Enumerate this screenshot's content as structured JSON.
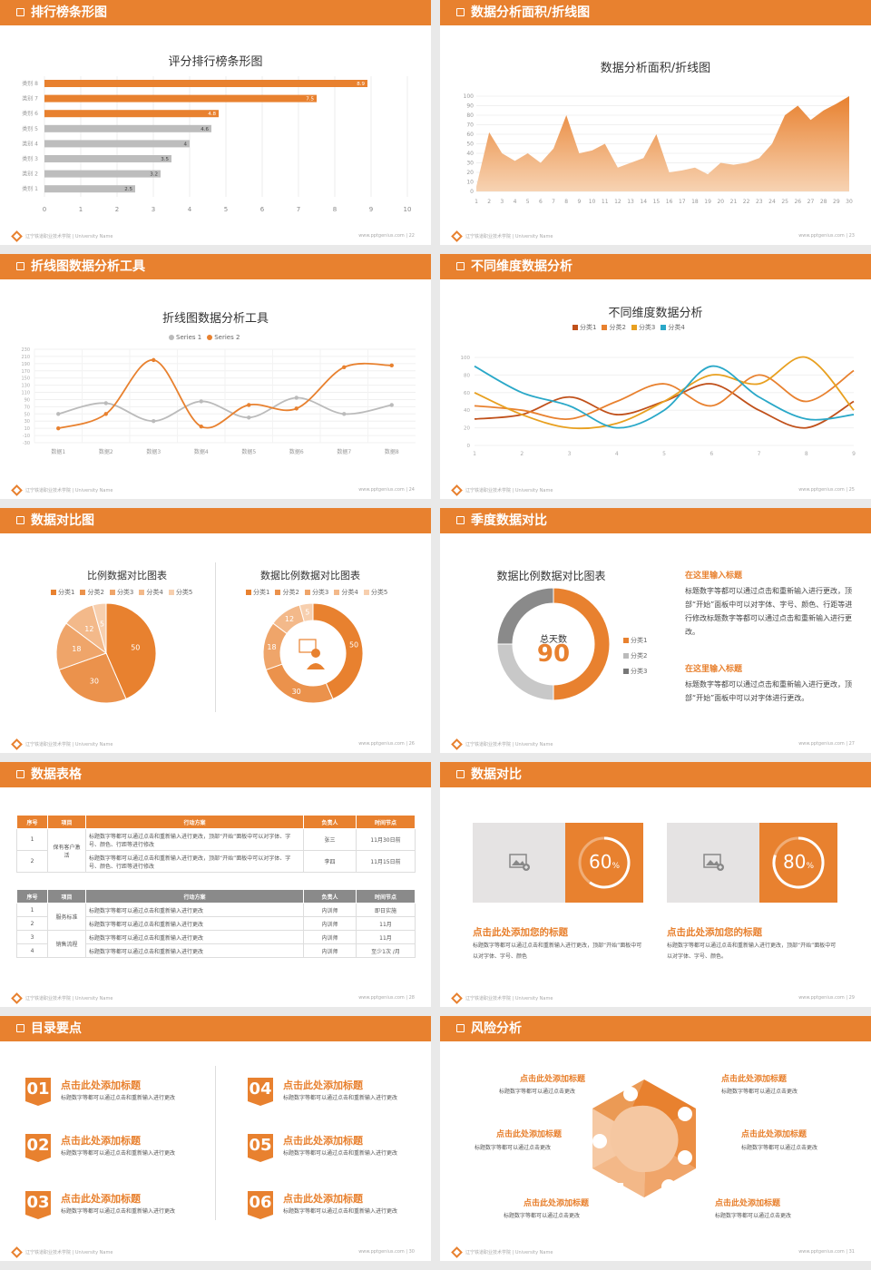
{
  "footer": {
    "left": "辽宁铁道职业技术学院 | University Name",
    "url": "www.pptgenius.com"
  },
  "slides": [
    {
      "title": "排行榜条形图",
      "page": "22"
    },
    {
      "title": "数据分析面积/折线图",
      "page": "23"
    },
    {
      "title": "折线图数据分析工具",
      "page": "24"
    },
    {
      "title": "不同维度数据分析",
      "page": "25"
    },
    {
      "title": "数据对比图",
      "page": "26"
    },
    {
      "title": "季度数据对比",
      "page": "27"
    },
    {
      "title": "数据表格",
      "page": "28"
    },
    {
      "title": "数据对比",
      "page": "29"
    },
    {
      "title": "目录要点",
      "page": "30"
    },
    {
      "title": "风险分析",
      "page": "31"
    }
  ],
  "s1": {
    "chart_title": "评分排行榜条形图"
  },
  "s2": {
    "chart_title": "数据分析面积/折线图"
  },
  "s3": {
    "chart_title": "折线图数据分析工具",
    "legend": [
      "Series 1",
      "Series 2"
    ]
  },
  "s4": {
    "chart_title": "不同维度数据分析",
    "legend": [
      "分类1",
      "分类2",
      "分类3",
      "分类4"
    ]
  },
  "s5": {
    "pie_title": "比例数据对比图表",
    "donut_title": "数据比例数据对比图表",
    "legend": [
      "分类1",
      "分类2",
      "分类3",
      "分类4",
      "分类5"
    ]
  },
  "s6": {
    "chart_title": "数据比例数据对比图表",
    "center_label": "总天数",
    "center_value": "90",
    "legend": [
      "分类1",
      "分类2",
      "分类3"
    ],
    "h1": "在这里输入标题",
    "p1": "标题数字等都可以通过点击和重新输入进行更改，顶部“开始”面板中可以对字体、字号、颜色、行距等进行修改标题数字等都可以通过点击和重新输入进行更改。",
    "h2": "在这里输入标题",
    "p2": "标题数字等都可以通过点击和重新输入进行更改，顶部“开始”面板中可以对字体进行更改。"
  },
  "s7": {
    "headers": [
      "序号",
      "项目",
      "行动方案",
      "负责人",
      "时间节点"
    ],
    "t1": {
      "group": "保有客户激活",
      "rows": [
        [
          "1",
          "标题数字等都可以通过点击和重新输入进行更改，顶部“开始”面板中可以对字体、字号、颜色、行距等进行修改",
          "张三",
          "11月30日前"
        ],
        [
          "2",
          "标题数字等都可以通过点击和重新输入进行更改，顶部“开始”面板中可以对字体、字号、颜色、行距等进行修改",
          "李四",
          "11月15日前"
        ]
      ]
    },
    "t2": {
      "group1": "服务标准",
      "group2": "销售流程",
      "rows": [
        [
          "1",
          "标题数字等都可以通过点击和重新输入进行更改",
          "内训师",
          "即日实施"
        ],
        [
          "2",
          "标题数字等都可以通过点击和重新输入进行更改",
          "内训师",
          "11月"
        ],
        [
          "3",
          "标题数字等都可以通过点击和重新输入进行更改",
          "内训师",
          "11月"
        ],
        [
          "4",
          "标题数字等都可以通过点击和重新输入进行更改",
          "内训师",
          "至少1次 /月"
        ]
      ]
    }
  },
  "s8": {
    "cards": [
      {
        "pct": "60",
        "sign": "%",
        "title": "点击此处添加您的标题",
        "text": "标题数字等都可以通过点击和重新输入进行更改，顶部“开始”面板中可以对字体、字号、颜色"
      },
      {
        "pct": "80",
        "sign": "%",
        "title": "点击此处添加您的标题",
        "text": "标题数字等都可以通过点击和重新输入进行更改，顶部“开始”面板中可以对字体、字号、颜色。"
      }
    ]
  },
  "s9": {
    "items": [
      {
        "num": "01",
        "title": "点击此处添加标题",
        "text": "标题数字等都可以通过点击和重新输入进行更改"
      },
      {
        "num": "02",
        "title": "点击此处添加标题",
        "text": "标题数字等都可以通过点击和重新输入进行更改"
      },
      {
        "num": "03",
        "title": "点击此处添加标题",
        "text": "标题数字等都可以通过点击和重新输入进行更改"
      },
      {
        "num": "04",
        "title": "点击此处添加标题",
        "text": "标题数字等都可以通过点击和重新输入进行更改"
      },
      {
        "num": "05",
        "title": "点击此处添加标题",
        "text": "标题数字等都可以通过点击和重新输入进行更改"
      },
      {
        "num": "06",
        "title": "点击此处添加标题",
        "text": "标题数字等都可以通过点击和重新输入进行更改"
      }
    ]
  },
  "s10": {
    "items": [
      {
        "title": "点击此处添加标题",
        "text": "标题数字等都可以通过点击更改"
      },
      {
        "title": "点击此处添加标题",
        "text": "标题数字等都可以通过点击更改"
      },
      {
        "title": "点击此处添加标题",
        "text": "标题数字等都可以通过点击更改"
      },
      {
        "title": "点击此处添加标题",
        "text": "标题数字等都可以通过点击更改"
      },
      {
        "title": "点击此处添加标题",
        "text": "标题数字等都可以通过点击更改"
      },
      {
        "title": "点击此处添加标题",
        "text": "标题数字等都可以通过点击更改"
      }
    ]
  },
  "chart_data": [
    {
      "type": "bar",
      "title": "评分排行榜条形图",
      "categories": [
        "类别 8",
        "类别 7",
        "类别 6",
        "类别 5",
        "类别 4",
        "类别 3",
        "类别 2",
        "类别 1"
      ],
      "values": [
        8.9,
        7.5,
        4.8,
        4.6,
        4,
        3.5,
        3.2,
        2.5
      ],
      "xlim": [
        0,
        10
      ],
      "xticks": [
        0,
        1,
        2,
        3,
        4,
        5,
        6,
        7,
        8,
        9,
        10
      ]
    },
    {
      "type": "area",
      "title": "数据分析面积/折线图",
      "x": [
        1,
        2,
        3,
        4,
        5,
        6,
        7,
        8,
        9,
        10,
        11,
        12,
        13,
        14,
        15,
        16,
        17,
        18,
        19,
        20,
        21,
        22,
        23,
        24,
        25,
        26,
        27,
        28,
        29,
        30
      ],
      "values": [
        5,
        62,
        40,
        32,
        40,
        30,
        45,
        80,
        40,
        43,
        50,
        25,
        30,
        35,
        60,
        20,
        22,
        25,
        18,
        30,
        28,
        30,
        35,
        50,
        80,
        90,
        75,
        85,
        92,
        100
      ],
      "ylim": [
        0,
        100
      ],
      "yticks": [
        0,
        10,
        20,
        30,
        40,
        50,
        60,
        70,
        80,
        90,
        100
      ]
    },
    {
      "type": "line",
      "title": "折线图数据分析工具",
      "categories": [
        "数据1",
        "数据2",
        "数据3",
        "数据4",
        "数据5",
        "数据6",
        "数据7",
        "数据8"
      ],
      "series": [
        {
          "name": "Series 1",
          "values": [
            50,
            80,
            30,
            85,
            40,
            95,
            50,
            75
          ]
        },
        {
          "name": "Series 2",
          "values": [
            10,
            50,
            200,
            15,
            75,
            65,
            180,
            185
          ]
        }
      ],
      "ylim": [
        -30,
        230
      ],
      "yticks": [
        230,
        210,
        190,
        170,
        150,
        130,
        110,
        90,
        70,
        50,
        30,
        10,
        -10,
        -30
      ]
    },
    {
      "type": "line",
      "title": "不同维度数据分析",
      "categories": [
        "1",
        "2",
        "3",
        "4",
        "5",
        "6",
        "7",
        "8",
        "9"
      ],
      "series": [
        {
          "name": "分类1",
          "values": [
            30,
            35,
            55,
            35,
            50,
            70,
            40,
            20,
            50
          ]
        },
        {
          "name": "分类2",
          "values": [
            45,
            40,
            30,
            50,
            70,
            45,
            80,
            50,
            85
          ]
        },
        {
          "name": "分类3",
          "values": [
            60,
            35,
            20,
            25,
            50,
            80,
            70,
            100,
            40
          ]
        },
        {
          "name": "分类4",
          "values": [
            90,
            60,
            45,
            20,
            40,
            90,
            55,
            30,
            35
          ]
        }
      ],
      "ylim": [
        0,
        100
      ],
      "yticks": [
        0,
        20,
        40,
        60,
        80,
        100
      ]
    },
    {
      "type": "pie",
      "title": "比例数据对比图表",
      "categories": [
        "分类1",
        "分类2",
        "分类3",
        "分类4",
        "分类5"
      ],
      "values": [
        50,
        30,
        18,
        12,
        5
      ]
    },
    {
      "type": "pie",
      "title": "数据比例数据对比图表",
      "categories": [
        "分类1",
        "分类2",
        "分类3",
        "分类4",
        "分类5"
      ],
      "values": [
        50,
        30,
        18,
        12,
        5
      ]
    },
    {
      "type": "pie",
      "title": "数据比例数据对比图表",
      "categories": [
        "分类1",
        "分类2",
        "分类3"
      ],
      "values": [
        50,
        25,
        25
      ]
    }
  ],
  "colors": {
    "accent": "#e8812f",
    "gray": "#bdbdbd",
    "dark": "#c0501a",
    "yellow": "#e8a020",
    "teal": "#2aa8c8"
  }
}
